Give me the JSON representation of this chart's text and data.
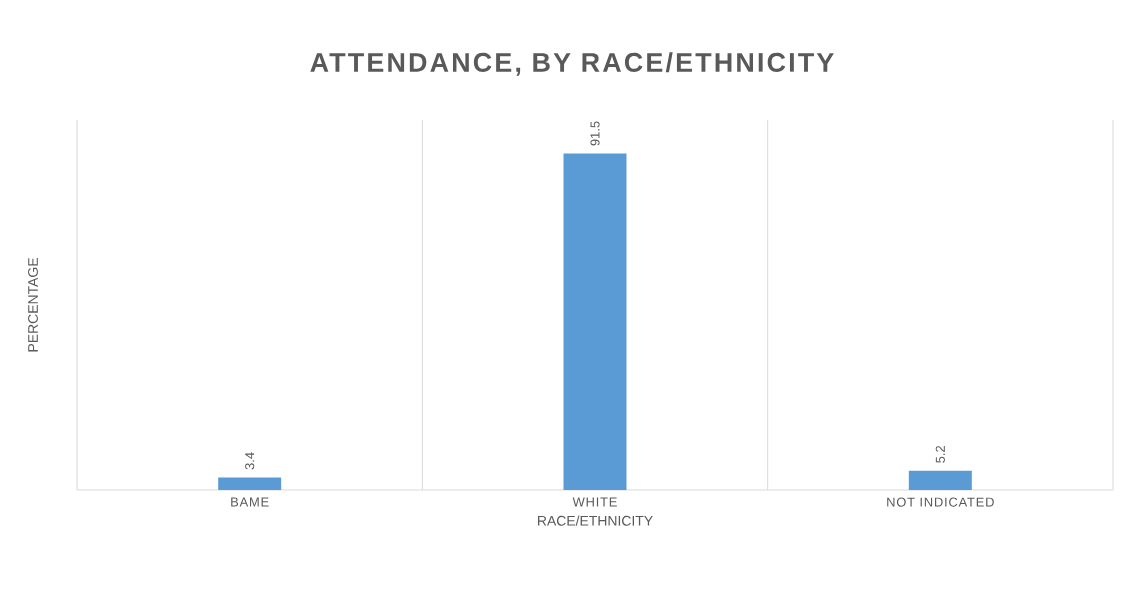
{
  "chart_data": {
    "type": "bar",
    "title": "ATTENDANCE, BY RACE/ETHNICITY",
    "xlabel": "RACE/ETHNICITY",
    "ylabel": "PERCENTAGE",
    "categories": [
      "BAME",
      "WHITE",
      "NOT INDICATED"
    ],
    "values": [
      3.4,
      91.5,
      5.2
    ],
    "color": "#5b9bd5",
    "data_labels": true,
    "grid": "x"
  }
}
